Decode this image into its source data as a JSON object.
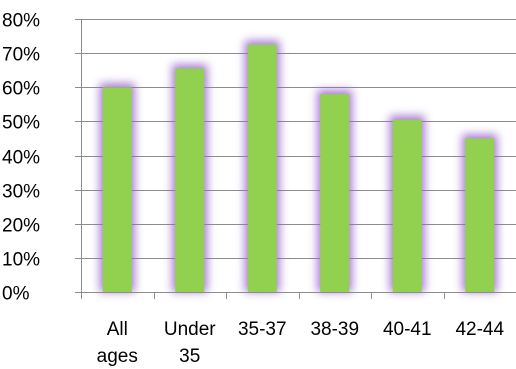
{
  "chart_data": {
    "type": "bar",
    "title": "",
    "xlabel": "",
    "ylabel": "",
    "categories": [
      [
        "All",
        "ages"
      ],
      [
        "Under",
        "35"
      ],
      [
        "35-37"
      ],
      [
        "38-39"
      ],
      [
        "40-41"
      ],
      [
        "42-44"
      ]
    ],
    "values": [
      60,
      65.5,
      72.5,
      58,
      50.5,
      45
    ],
    "ylim": [
      0,
      80
    ],
    "yticks": [
      0,
      10,
      20,
      30,
      40,
      50,
      60,
      70,
      80
    ],
    "tick_format": "%",
    "grid": true,
    "legend": "none",
    "bar_color": "#92d050",
    "glow_color": "#9966cc"
  }
}
